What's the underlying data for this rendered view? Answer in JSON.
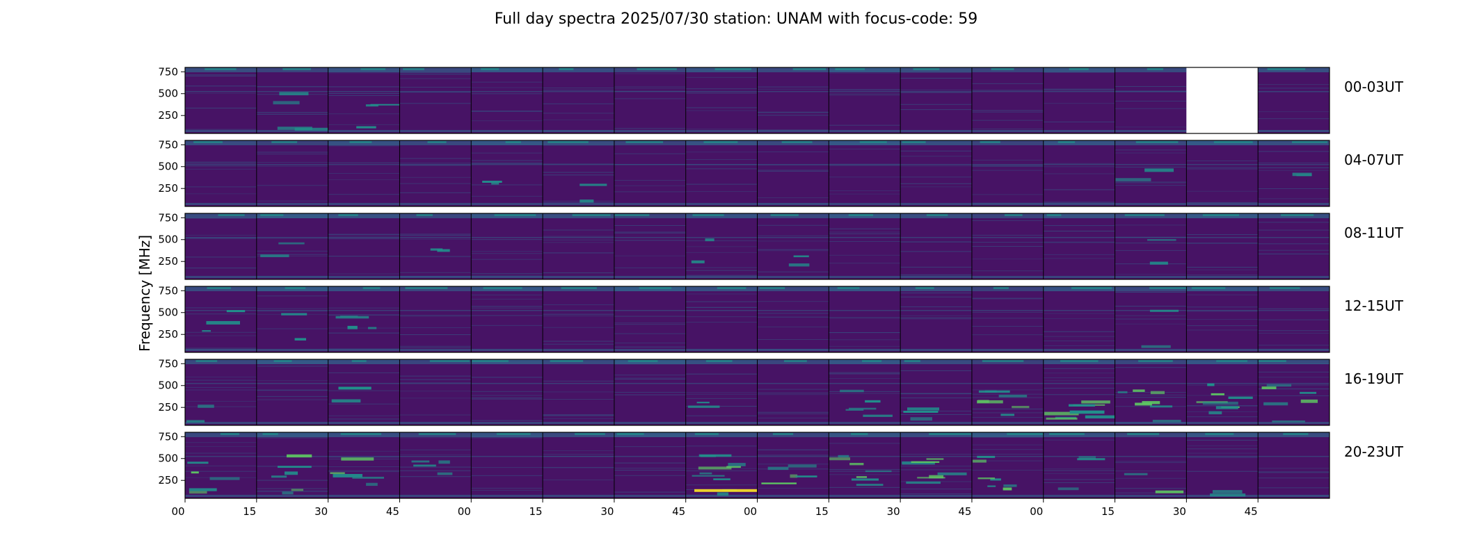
{
  "chart_data": {
    "type": "heatmap",
    "title": "Full day spectra 2025/07/30 station: UNAM with focus-code: 59",
    "ylabel": "Frequency [MHz]",
    "xlabel": "",
    "ylim": [
      45,
      800
    ],
    "yticks": [
      250,
      500,
      750
    ],
    "xtick_labels": [
      "00",
      "15",
      "30",
      "45",
      "00",
      "15",
      "30",
      "45",
      "00",
      "15",
      "30",
      "45",
      "00",
      "15",
      "30",
      "45"
    ],
    "colormap": "viridis",
    "colors": {
      "viridis_low": "#440154",
      "viridis_base": "#471365",
      "viridis_mid": "#31688e",
      "viridis_cyan": "#21918c",
      "viridis_green": "#5ec962",
      "viridis_high": "#fde725",
      "missing": "#ffffff",
      "frame": "#000000"
    },
    "rows": [
      {
        "label": "00-03UT",
        "missing_tiles": [
          14
        ],
        "activity": [
          0,
          0.3,
          0.2,
          0,
          0,
          0,
          0,
          0,
          0,
          0,
          0,
          0,
          0,
          0,
          0,
          0
        ]
      },
      {
        "label": "04-07UT",
        "missing_tiles": [],
        "activity": [
          0,
          0,
          0,
          0,
          0.1,
          0.1,
          0,
          0,
          0,
          0,
          0,
          0,
          0,
          0.1,
          0,
          0.1
        ]
      },
      {
        "label": "08-11UT",
        "missing_tiles": [],
        "activity": [
          0,
          0.1,
          0,
          0.1,
          0,
          0,
          0,
          0.1,
          0.1,
          0,
          0,
          0,
          0,
          0.1,
          0,
          0
        ]
      },
      {
        "label": "12-15UT",
        "missing_tiles": [],
        "activity": [
          0.2,
          0.1,
          0.3,
          0,
          0,
          0,
          0,
          0,
          0,
          0,
          0,
          0,
          0,
          0.1,
          0,
          0
        ]
      },
      {
        "label": "16-19UT",
        "missing_tiles": [],
        "activity": [
          0.1,
          0,
          0.1,
          0,
          0,
          0,
          0,
          0.1,
          0,
          0.4,
          0.2,
          0.6,
          0.7,
          0.6,
          0.7,
          0.5
        ]
      },
      {
        "label": "20-23UT",
        "missing_tiles": [],
        "activity": [
          0.4,
          0.5,
          0.4,
          0.3,
          0,
          0,
          0,
          0.9,
          0.5,
          0.6,
          0.6,
          0.6,
          0.2,
          0.1,
          0.1,
          0
        ]
      }
    ]
  }
}
